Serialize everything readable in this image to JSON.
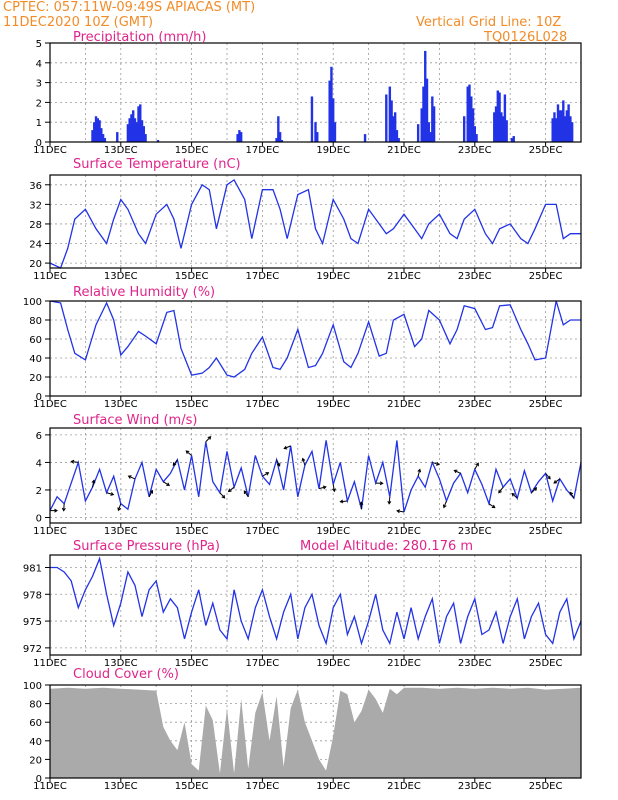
{
  "header": {
    "line1_left": "CPTEC:   057:11W-09:49S   APIACAS (MT)",
    "line2_left": "11DEC2020  10Z (GMT)",
    "line1_right": "Vertical Grid Line: 10Z",
    "line2_right": "TQ0126L028"
  },
  "x_axis": {
    "start_day": 11,
    "end_day": 26,
    "tick_labels": [
      "11DEC",
      "13DEC",
      "15DEC",
      "17DEC",
      "19DEC",
      "21DEC",
      "23DEC",
      "25DEC"
    ],
    "tick_days": [
      11,
      13,
      15,
      17,
      19,
      21,
      23,
      25
    ],
    "vgrid_days": [
      11,
      12,
      13,
      14,
      15,
      16,
      17,
      18,
      19,
      20,
      21,
      22,
      23,
      24,
      25,
      26
    ],
    "under_label": "20"
  },
  "colors": {
    "line": "#2233e6",
    "cloud": "#aaaaaa",
    "title": "#e0248a",
    "header": "#f28c28"
  },
  "chart_data": [
    {
      "type": "bar",
      "title": "Precipitation (mm/h)",
      "ylim": [
        0,
        5
      ],
      "yticks": [
        0,
        1,
        2,
        3,
        4,
        5
      ],
      "series": [
        {
          "x": [
            12.2,
            12.25,
            12.3,
            12.35,
            12.4,
            12.45,
            12.5,
            12.55,
            12.9,
            13.2,
            13.25,
            13.3,
            13.35,
            13.4,
            13.45,
            13.5,
            13.55,
            13.6,
            13.65,
            13.7,
            14.05,
            16.3,
            16.35,
            16.4,
            17.4,
            17.45,
            17.5,
            17.55,
            18.4,
            18.5,
            18.55,
            18.9,
            18.95,
            19.0,
            19.05,
            19.9,
            20.5,
            20.6,
            20.65,
            20.7,
            20.75,
            20.8,
            20.85,
            21.4,
            21.5,
            21.55,
            21.6,
            21.65,
            21.7,
            21.75,
            21.8,
            21.85,
            22.7,
            22.8,
            22.85,
            22.9,
            22.95,
            23.0,
            23.05,
            23.55,
            23.6,
            23.65,
            23.7,
            23.75,
            23.8,
            23.85,
            23.9,
            24.05,
            24.1,
            25.2,
            25.25,
            25.3,
            25.35,
            25.4,
            25.45,
            25.5,
            25.55,
            25.6,
            25.65,
            25.7,
            25.75
          ],
          "values": [
            0.6,
            1.0,
            1.3,
            1.2,
            1.1,
            0.7,
            0.4,
            0.2,
            0.5,
            0.9,
            1.2,
            1.4,
            1.6,
            1.2,
            1.0,
            1.8,
            1.9,
            1.1,
            0.8,
            0.4,
            0.1,
            0.4,
            0.6,
            0.5,
            0.2,
            1.3,
            0.5,
            0.1,
            2.3,
            1.0,
            0.5,
            3.1,
            3.8,
            2.2,
            1.0,
            0.4,
            2.4,
            2.8,
            2.1,
            1.3,
            1.5,
            0.6,
            0.2,
            0.9,
            1.7,
            2.8,
            4.6,
            3.2,
            1.0,
            0.5,
            2.3,
            1.8,
            1.3,
            2.8,
            2.9,
            2.3,
            1.7,
            0.8,
            0.4,
            1.5,
            1.8,
            2.6,
            2.5,
            1.5,
            1.3,
            2.4,
            1.1,
            0.2,
            0.3,
            1.2,
            1.5,
            1.2,
            1.9,
            1.6,
            1.6,
            2.1,
            1.3,
            1.6,
            1.9,
            1.3,
            1.0
          ]
        }
      ]
    },
    {
      "type": "line",
      "title": "Surface Temperature (nC)",
      "ylim": [
        19,
        38
      ],
      "yticks": [
        20,
        24,
        28,
        32,
        36
      ],
      "series": [
        {
          "x": [
            11.0,
            11.3,
            11.5,
            11.7,
            12.0,
            12.3,
            12.6,
            12.8,
            13.0,
            13.2,
            13.5,
            13.7,
            14.0,
            14.3,
            14.5,
            14.7,
            15.0,
            15.3,
            15.5,
            15.7,
            16.0,
            16.2,
            16.5,
            16.7,
            17.0,
            17.3,
            17.5,
            17.7,
            18.0,
            18.3,
            18.5,
            18.7,
            19.0,
            19.3,
            19.5,
            19.7,
            20.0,
            20.3,
            20.5,
            20.7,
            21.0,
            21.3,
            21.5,
            21.7,
            22.0,
            22.3,
            22.5,
            22.7,
            23.0,
            23.3,
            23.5,
            23.7,
            24.0,
            24.3,
            24.5,
            24.7,
            25.0,
            25.3,
            25.5,
            25.7,
            26.0
          ],
          "values": [
            20,
            19,
            23,
            29,
            31,
            27,
            24,
            29,
            33,
            31,
            26,
            24,
            30,
            32,
            29,
            23,
            32,
            36,
            35,
            27,
            36,
            37,
            33,
            25,
            35,
            35,
            31,
            25,
            34,
            35,
            27,
            24,
            33,
            29,
            25,
            24,
            31,
            28,
            26,
            27,
            30,
            27,
            25,
            28,
            30,
            26,
            25,
            29,
            31,
            26,
            24,
            27,
            28,
            25,
            24,
            27,
            32,
            32,
            25,
            26,
            26
          ]
        }
      ]
    },
    {
      "type": "line",
      "title": "Relative Humidity (%)",
      "ylim": [
        0,
        100
      ],
      "yticks": [
        0,
        20,
        40,
        60,
        80,
        100
      ],
      "series": [
        {
          "x": [
            11.0,
            11.3,
            11.5,
            11.7,
            12.0,
            12.3,
            12.6,
            12.8,
            13.0,
            13.2,
            13.5,
            13.7,
            14.0,
            14.3,
            14.5,
            14.7,
            15.0,
            15.3,
            15.5,
            15.7,
            16.0,
            16.2,
            16.5,
            16.7,
            17.0,
            17.3,
            17.5,
            17.7,
            18.0,
            18.3,
            18.5,
            18.7,
            19.0,
            19.3,
            19.5,
            19.7,
            20.0,
            20.3,
            20.5,
            20.7,
            21.0,
            21.3,
            21.5,
            21.7,
            22.0,
            22.3,
            22.5,
            22.7,
            23.0,
            23.3,
            23.5,
            23.7,
            24.0,
            24.3,
            24.5,
            24.7,
            25.0,
            25.3,
            25.5,
            25.7,
            26.0
          ],
          "values": [
            100,
            98,
            70,
            45,
            38,
            75,
            98,
            80,
            43,
            52,
            68,
            63,
            55,
            88,
            90,
            50,
            22,
            24,
            30,
            40,
            22,
            20,
            28,
            45,
            62,
            30,
            28,
            40,
            70,
            30,
            32,
            45,
            75,
            36,
            30,
            45,
            78,
            42,
            45,
            80,
            86,
            52,
            60,
            90,
            80,
            55,
            70,
            95,
            92,
            70,
            72,
            95,
            96,
            70,
            55,
            38,
            40,
            100,
            75,
            80,
            80
          ]
        }
      ]
    },
    {
      "type": "line",
      "title": "Surface Wind (m/s)",
      "ylim": [
        -0.4,
        6.5
      ],
      "yticks": [
        0,
        2,
        4,
        6
      ],
      "series": [
        {
          "x": [
            11.0,
            11.2,
            11.4,
            11.6,
            11.8,
            12.0,
            12.2,
            12.4,
            12.6,
            12.8,
            13.0,
            13.2,
            13.4,
            13.6,
            13.8,
            14.0,
            14.2,
            14.4,
            14.6,
            14.8,
            15.0,
            15.2,
            15.4,
            15.6,
            15.8,
            16.0,
            16.2,
            16.4,
            16.6,
            16.8,
            17.0,
            17.2,
            17.4,
            17.6,
            17.8,
            18.0,
            18.2,
            18.4,
            18.6,
            18.8,
            19.0,
            19.2,
            19.4,
            19.6,
            19.8,
            20.0,
            20.2,
            20.4,
            20.6,
            20.8,
            21.0,
            21.2,
            21.4,
            21.6,
            21.8,
            22.0,
            22.2,
            22.4,
            22.6,
            22.8,
            23.0,
            23.2,
            23.4,
            23.6,
            23.8,
            24.0,
            24.2,
            24.4,
            24.6,
            24.8,
            25.0,
            25.2,
            25.4,
            25.6,
            25.8,
            26.0
          ],
          "values": [
            0.5,
            1.5,
            1.0,
            2.5,
            4.0,
            1.2,
            2.2,
            3.5,
            1.8,
            3.0,
            1.0,
            0.6,
            2.8,
            4.0,
            1.5,
            3.5,
            2.6,
            3.2,
            4.2,
            2.0,
            4.5,
            1.5,
            5.5,
            2.6,
            1.8,
            4.8,
            2.2,
            3.6,
            1.5,
            4.5,
            3.0,
            2.4,
            4.2,
            2.0,
            5.2,
            1.5,
            3.8,
            4.8,
            2.1,
            5.6,
            2.4,
            4.0,
            1.2,
            2.6,
            0.6,
            4.5,
            2.5,
            4.0,
            1.5,
            5.6,
            0.4,
            2.0,
            3.0,
            2.2,
            4.0,
            2.8,
            1.2,
            2.5,
            3.2,
            1.8,
            3.5,
            2.4,
            1.0,
            3.5,
            2.2,
            2.8,
            1.4,
            3.4,
            1.8,
            2.6,
            3.2,
            1.2,
            2.8,
            2.0,
            1.4,
            4.0
          ]
        }
      ]
    },
    {
      "type": "line",
      "title": "Surface Pressure (hPa)",
      "annotation": "Model Altitude: 280.176 m",
      "ylim": [
        971.2,
        982.4
      ],
      "yticks": [
        972,
        975,
        978,
        981
      ],
      "series": [
        {
          "x": [
            11.0,
            11.2,
            11.4,
            11.6,
            11.8,
            12.0,
            12.2,
            12.4,
            12.6,
            12.8,
            13.0,
            13.2,
            13.4,
            13.6,
            13.8,
            14.0,
            14.2,
            14.4,
            14.6,
            14.8,
            15.0,
            15.2,
            15.4,
            15.6,
            15.8,
            16.0,
            16.2,
            16.4,
            16.6,
            16.8,
            17.0,
            17.2,
            17.4,
            17.6,
            17.8,
            18.0,
            18.2,
            18.4,
            18.6,
            18.8,
            19.0,
            19.2,
            19.4,
            19.6,
            19.8,
            20.0,
            20.2,
            20.4,
            20.6,
            20.8,
            21.0,
            21.2,
            21.4,
            21.6,
            21.8,
            22.0,
            22.2,
            22.4,
            22.6,
            22.8,
            23.0,
            23.2,
            23.4,
            23.6,
            23.8,
            24.0,
            24.2,
            24.4,
            24.6,
            24.8,
            25.0,
            25.2,
            25.4,
            25.6,
            25.8,
            26.0
          ],
          "values": [
            981,
            981,
            980.5,
            979.5,
            976.5,
            978.5,
            980,
            982,
            978,
            974.5,
            977,
            980.5,
            979,
            975.5,
            978.5,
            979.5,
            976,
            977.5,
            976.5,
            973,
            976,
            978.5,
            974.5,
            977,
            974,
            973,
            978.5,
            975,
            973,
            976.5,
            978.5,
            975.5,
            973,
            976,
            978,
            973,
            976.5,
            978,
            974.5,
            972.5,
            976.5,
            978,
            973.5,
            975.5,
            972.5,
            975,
            978,
            974,
            972.5,
            976,
            973,
            976.5,
            973,
            975.5,
            977.5,
            972.5,
            975.5,
            977,
            972.5,
            975.5,
            977.5,
            973.5,
            974,
            976,
            972.5,
            975.5,
            977.5,
            973,
            975.5,
            977,
            973.5,
            972.5,
            976,
            977.5,
            973,
            975
          ]
        }
      ]
    },
    {
      "type": "area",
      "title": "Cloud Cover (%)",
      "ylim": [
        0,
        100
      ],
      "yticks": [
        0,
        20,
        40,
        60,
        80,
        100
      ],
      "series": [
        {
          "x": [
            11.0,
            11.5,
            12.0,
            12.5,
            13.0,
            13.5,
            14.0,
            14.2,
            14.4,
            14.6,
            14.8,
            15.0,
            15.2,
            15.4,
            15.6,
            15.8,
            16.0,
            16.2,
            16.4,
            16.6,
            16.8,
            17.0,
            17.2,
            17.4,
            17.6,
            17.8,
            18.0,
            18.2,
            18.4,
            18.6,
            18.8,
            19.0,
            19.2,
            19.4,
            19.6,
            19.8,
            20.0,
            20.2,
            20.4,
            20.6,
            20.8,
            21.0,
            21.5,
            22.0,
            22.5,
            23.0,
            23.5,
            24.0,
            24.5,
            25.0,
            25.5,
            26.0
          ],
          "values": [
            96,
            97,
            96,
            97,
            96,
            95,
            94,
            55,
            40,
            30,
            60,
            15,
            8,
            78,
            62,
            5,
            75,
            5,
            85,
            10,
            70,
            92,
            40,
            88,
            12,
            75,
            95,
            60,
            40,
            20,
            8,
            45,
            94,
            90,
            60,
            72,
            95,
            85,
            70,
            96,
            90,
            97,
            97,
            96,
            97,
            96,
            97,
            96,
            97,
            95,
            96,
            97
          ]
        }
      ]
    }
  ]
}
